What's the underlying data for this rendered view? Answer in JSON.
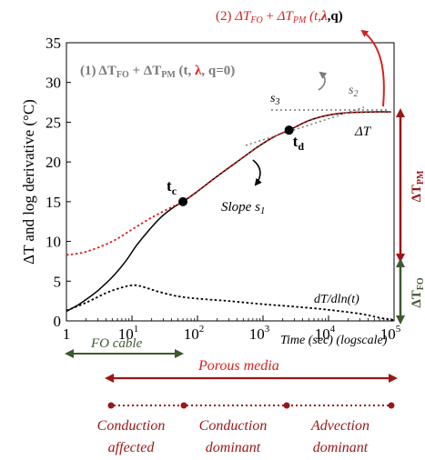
{
  "chart_data": {
    "type": "line",
    "xlabel": "Time (sec) (logscale)",
    "ylabel": "ΔT and log derivative (°C)",
    "x_scale": "log",
    "xlim": [
      1,
      100000
    ],
    "ylim": [
      0,
      35
    ],
    "grid": false,
    "x_ticks": [
      {
        "value": 1,
        "base": "1",
        "exp": ""
      },
      {
        "value": 10,
        "base": "10",
        "exp": "1"
      },
      {
        "value": 100,
        "base": "10",
        "exp": "2"
      },
      {
        "value": 1000,
        "base": "10",
        "exp": "3"
      },
      {
        "value": 10000,
        "base": "10",
        "exp": "4"
      },
      {
        "value": 100000,
        "base": "10",
        "exp": "5"
      }
    ],
    "y_ticks": [
      0,
      5,
      10,
      15,
      20,
      25,
      30,
      35
    ],
    "series": [
      {
        "style": "solid",
        "color": "#000000",
        "points": [
          [
            1,
            1.2
          ],
          [
            1.5,
            2.0
          ],
          [
            2,
            2.7
          ],
          [
            3,
            3.8
          ],
          [
            5,
            5.5
          ],
          [
            8,
            7.5
          ],
          [
            12,
            9.6
          ],
          [
            20,
            11.8
          ],
          [
            30,
            13.3
          ],
          [
            45,
            14.4
          ],
          [
            60,
            15.0
          ],
          [
            100,
            16.3
          ],
          [
            200,
            18.2
          ],
          [
            400,
            20.0
          ],
          [
            800,
            21.8
          ],
          [
            1500,
            23.2
          ],
          [
            2500,
            24.0
          ],
          [
            5000,
            25.2
          ],
          [
            10000,
            25.9
          ],
          [
            20000,
            26.2
          ],
          [
            50000,
            26.3
          ],
          [
            90000,
            26.3
          ]
        ]
      },
      {
        "style": "dotted",
        "color": "#d62020",
        "points": [
          [
            1,
            8.3
          ],
          [
            2,
            8.7
          ],
          [
            5,
            10.0
          ],
          [
            10,
            11.5
          ],
          [
            20,
            13.0
          ],
          [
            40,
            14.3
          ],
          [
            60,
            15.0
          ],
          [
            100,
            16.3
          ],
          [
            200,
            18.2
          ],
          [
            400,
            20.0
          ],
          [
            800,
            21.8
          ],
          [
            1500,
            23.2
          ],
          [
            2500,
            24.0
          ],
          [
            5000,
            25.2
          ],
          [
            10000,
            25.9
          ],
          [
            20000,
            26.2
          ],
          [
            50000,
            26.3
          ],
          [
            90000,
            26.3
          ]
        ]
      },
      {
        "style": "dotted",
        "color": "#000000",
        "points": [
          [
            1,
            1.3
          ],
          [
            2,
            2.3
          ],
          [
            4,
            3.5
          ],
          [
            7,
            4.2
          ],
          [
            11,
            4.5
          ],
          [
            16,
            4.2
          ],
          [
            25,
            3.7
          ],
          [
            50,
            3.1
          ],
          [
            100,
            2.8
          ],
          [
            300,
            2.5
          ],
          [
            1000,
            2.1
          ],
          [
            3000,
            1.8
          ],
          [
            10000,
            1.4
          ],
          [
            30000,
            0.9
          ],
          [
            60000,
            0.4
          ],
          [
            100000,
            0.1
          ]
        ]
      }
    ],
    "points": [
      {
        "label": "t",
        "sub": "c",
        "x": 60,
        "y": 15.0
      },
      {
        "label": "t",
        "sub": "d",
        "x": 2500,
        "y": 24.0
      }
    ],
    "annotations": {
      "top_red": {
        "prefix": "(2) ",
        "t1": "ΔT",
        "s1": "FO",
        "plus": " + ",
        "t2": "ΔT",
        "s2": "PM",
        "args": " (t,",
        "lam": "λ",
        "q": ",q)"
      },
      "gray": {
        "prefix": "(1) ",
        "t1": "ΔT",
        "s1": "FO",
        "plus": " + ",
        "t2": "ΔT",
        "s2": "PM",
        "args_a": " (t, ",
        "lam": "λ",
        "args_b": ", q=0)"
      },
      "s3": "s",
      "s3_sub": "3",
      "s2": "s",
      "s2_sub": "2",
      "deltaT_label": "ΔT",
      "slope": "Slope s",
      "slope_sub": "1",
      "log_derivative": "dT/dln(t)",
      "right_pm": "ΔT",
      "right_pm_sub": "PM",
      "right_fo": "ΔT",
      "right_fo_sub": "FO"
    },
    "bottom": {
      "fo_cable": "FO cable",
      "porous_media": "Porous media",
      "regimes": [
        {
          "line1": "Conduction",
          "line2": "affected"
        },
        {
          "line1": "Conduction",
          "line2": "dominant"
        },
        {
          "line1": "Advection",
          "line2": "dominant"
        }
      ]
    },
    "colors": {
      "red": "#d62020",
      "dark_red": "#9b1616",
      "green": "#3d5a2e",
      "gray": "#7a7a7a"
    }
  }
}
